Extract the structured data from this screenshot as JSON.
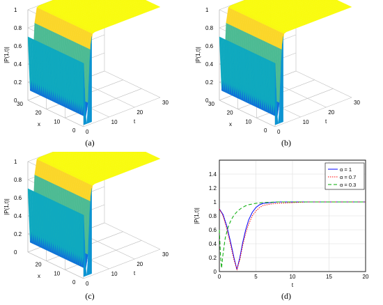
{
  "chart_data": [
    {
      "type": "surface",
      "panel": "(a)",
      "zlabel": "|P(1,t)|",
      "xlabel": "t",
      "ylabel": "x",
      "t_ticks": [
        "0",
        "10",
        "20",
        "30"
      ],
      "x_ticks": [
        "30",
        "20",
        "10",
        "0"
      ],
      "z_ticks": [
        "0",
        "0.2",
        "0.4",
        "0.6",
        "0.8",
        "1"
      ],
      "xlim": [
        0,
        30
      ],
      "ylim": [
        0,
        30
      ],
      "zlim": [
        0,
        1
      ],
      "colormap": "parula"
    },
    {
      "type": "surface",
      "panel": "(b)",
      "zlabel": "|P(1,t)|",
      "xlabel": "t",
      "ylabel": "x",
      "t_ticks": [
        "0",
        "10",
        "20",
        "30"
      ],
      "x_ticks": [
        "30",
        "20",
        "10",
        "0"
      ],
      "z_ticks": [
        "0",
        "0.2",
        "0.4",
        "0.6",
        "0.8",
        "1"
      ],
      "xlim": [
        0,
        30
      ],
      "ylim": [
        0,
        30
      ],
      "zlim": [
        0,
        1
      ],
      "colormap": "parula"
    },
    {
      "type": "surface",
      "panel": "(c)",
      "zlabel": "|P(1,t)|",
      "xlabel": "t",
      "ylabel": "x",
      "t_ticks": [
        "0",
        "10",
        "20",
        "30"
      ],
      "x_ticks": [
        "20",
        "10",
        "0"
      ],
      "z_ticks": [
        "0",
        "0.2",
        "0.4",
        "0.6",
        "0.8",
        "1"
      ],
      "xlim": [
        0,
        30
      ],
      "ylim": [
        0,
        30
      ],
      "zlim": [
        0,
        1
      ],
      "colormap": "parula"
    },
    {
      "type": "line",
      "panel": "(d)",
      "xlabel": "t",
      "ylabel": "|P(1,t)|",
      "xlim": [
        0,
        20
      ],
      "ylim": [
        0,
        1.6
      ],
      "x_ticks": [
        "0",
        "5",
        "10",
        "15",
        "20"
      ],
      "y_ticks": [
        "0",
        "0.2",
        "0.4",
        "0.6",
        "0.8",
        "1",
        "1.2",
        "1.4"
      ],
      "grid": true,
      "legend_position": "top-right",
      "series": [
        {
          "name": "α = 1",
          "color": "#0000ff",
          "style": "solid",
          "x": [
            0,
            0.5,
            1,
            1.5,
            2,
            2.4,
            2.8,
            3.2,
            3.6,
            4,
            4.5,
            5,
            5.5,
            6,
            7,
            8,
            10,
            12,
            15,
            20
          ],
          "y": [
            0.9,
            0.82,
            0.66,
            0.44,
            0.2,
            0.03,
            0.2,
            0.42,
            0.6,
            0.74,
            0.85,
            0.92,
            0.96,
            0.98,
            0.99,
            1.0,
            1.0,
            1.0,
            1.0,
            1.0
          ]
        },
        {
          "name": "α = 0.7",
          "color": "#ff0000",
          "style": "dotted",
          "x": [
            0,
            0.5,
            1,
            1.5,
            2,
            2.4,
            2.8,
            3.2,
            3.6,
            4,
            4.5,
            5,
            5.5,
            6,
            7,
            8,
            10,
            12,
            15,
            20
          ],
          "y": [
            0.9,
            0.8,
            0.62,
            0.4,
            0.17,
            0.03,
            0.17,
            0.38,
            0.55,
            0.68,
            0.8,
            0.87,
            0.92,
            0.95,
            0.97,
            0.98,
            0.99,
            1.0,
            1.0,
            1.0
          ]
        },
        {
          "name": "α = 0.3",
          "color": "#00aa00",
          "style": "dashed",
          "x": [
            0,
            0.15,
            0.3,
            0.5,
            0.8,
            1.2,
            1.6,
            2,
            2.5,
            3,
            3.5,
            4,
            5,
            6,
            8,
            10,
            12,
            15,
            20
          ],
          "y": [
            0.6,
            0.25,
            0.05,
            0.25,
            0.48,
            0.64,
            0.74,
            0.81,
            0.87,
            0.91,
            0.94,
            0.96,
            0.98,
            0.99,
            1.0,
            1.0,
            1.0,
            1.0,
            1.0
          ]
        }
      ]
    }
  ]
}
